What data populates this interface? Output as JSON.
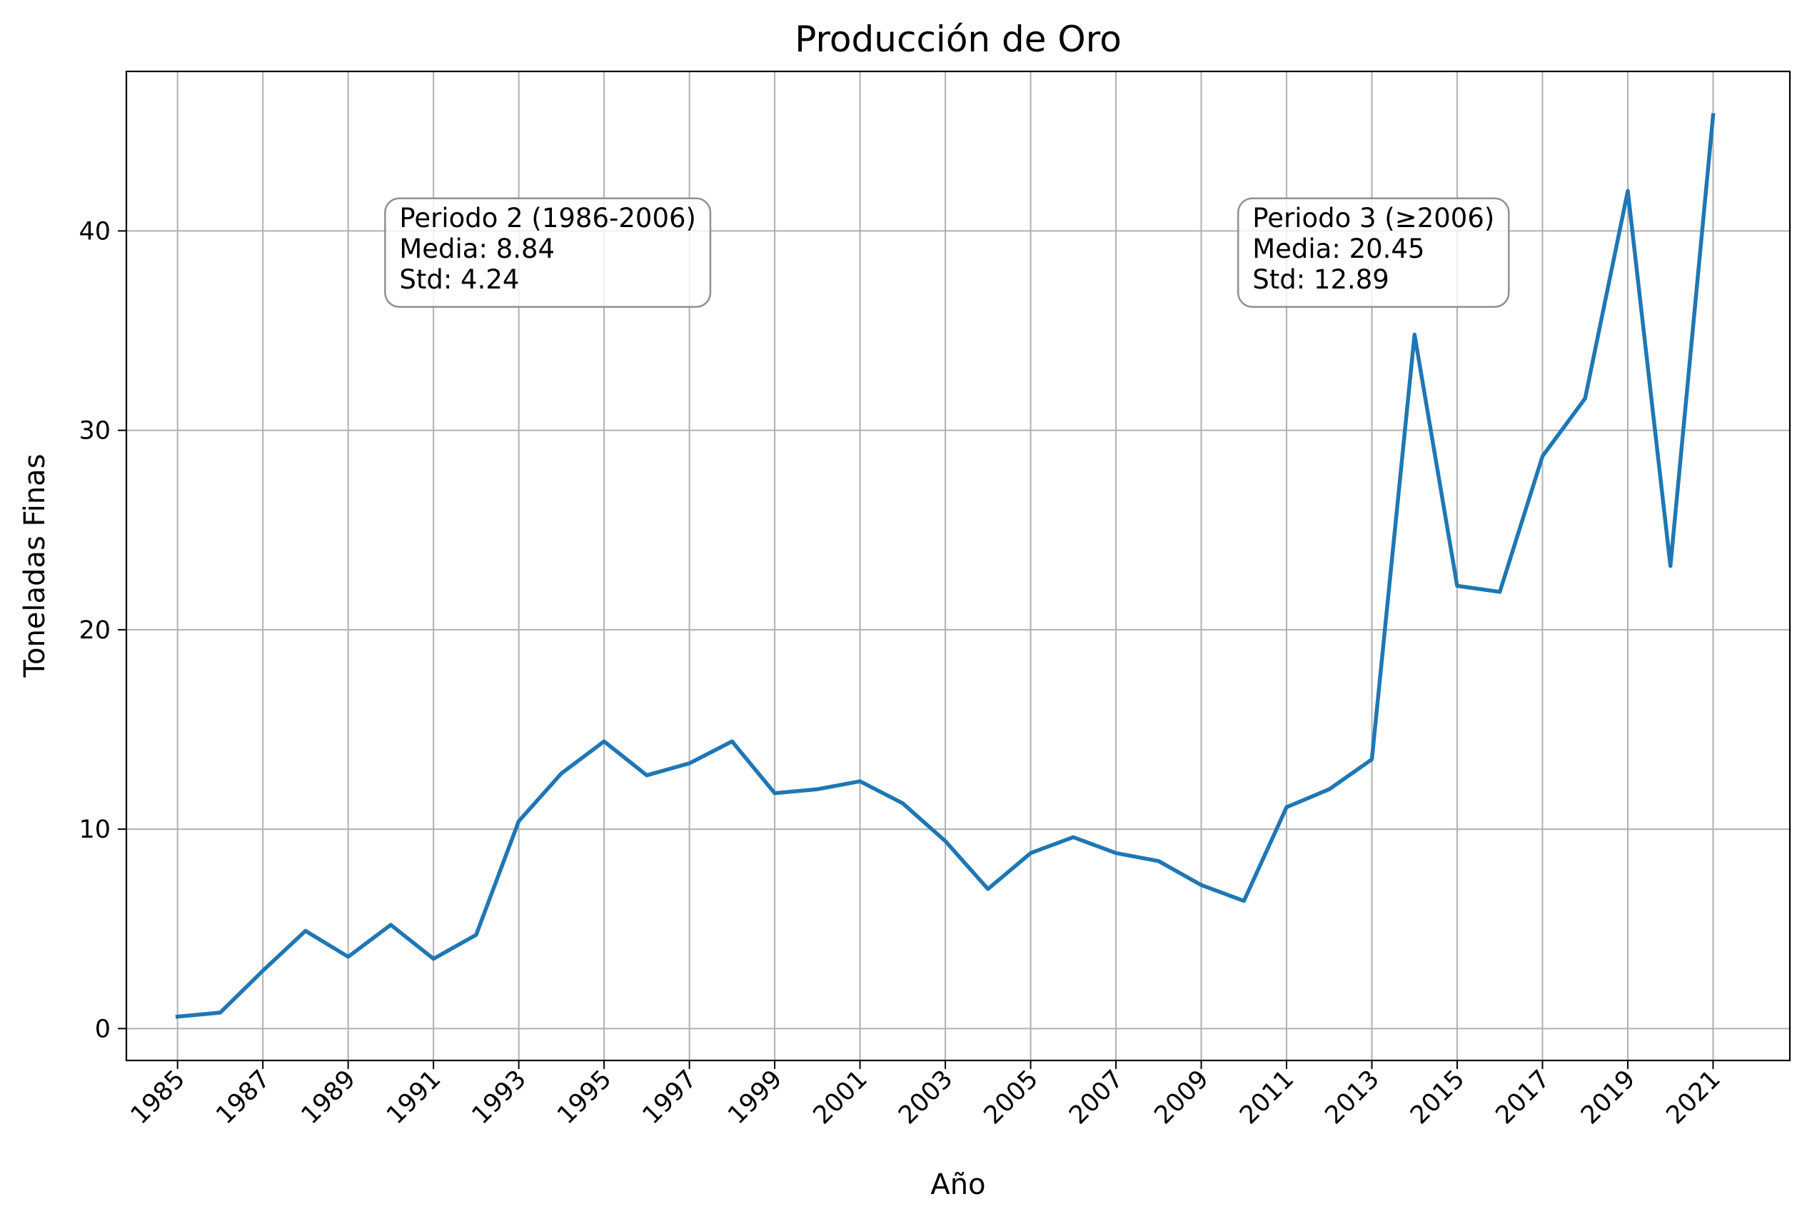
{
  "chart_data": {
    "type": "line",
    "title": "Producción de Oro",
    "xlabel": "Año",
    "ylabel": "Toneladas Finas",
    "xlim": [
      1983.8,
      2022.8
    ],
    "ylim": [
      -1.6,
      48.0
    ],
    "grid": true,
    "x_ticks": [
      1985,
      1987,
      1989,
      1991,
      1993,
      1995,
      1997,
      1999,
      2001,
      2003,
      2005,
      2007,
      2009,
      2011,
      2013,
      2015,
      2017,
      2019,
      2021
    ],
    "y_ticks": [
      0,
      10,
      20,
      30,
      40
    ],
    "series": [
      {
        "color": "#1f77b4",
        "x": [
          1985,
          1986,
          1987,
          1988,
          1989,
          1990,
          1991,
          1992,
          1993,
          1994,
          1995,
          1996,
          1997,
          1998,
          1999,
          2000,
          2001,
          2002,
          2003,
          2004,
          2005,
          2006,
          2007,
          2008,
          2009,
          2010,
          2011,
          2012,
          2013,
          2014,
          2015,
          2016,
          2017,
          2018,
          2019,
          2020,
          2021
        ],
        "y": [
          0.6,
          0.8,
          2.9,
          4.9,
          3.6,
          5.2,
          3.5,
          4.7,
          10.4,
          12.8,
          14.4,
          12.7,
          13.3,
          14.4,
          11.8,
          12.0,
          12.4,
          11.3,
          9.4,
          7.0,
          8.8,
          9.6,
          8.8,
          8.4,
          7.2,
          6.4,
          11.1,
          12.0,
          13.5,
          34.8,
          22.2,
          21.9,
          28.7,
          31.6,
          42.0,
          23.2,
          45.8
        ]
      }
    ],
    "annotations": [
      {
        "name": "periodo-2",
        "x": 1990.2,
        "y": 40.2,
        "lines": [
          "Periodo 2 (1986-2006)",
          "Media: 8.84",
          "Std: 4.24"
        ]
      },
      {
        "name": "periodo-3",
        "x": 2010.2,
        "y": 40.2,
        "lines": [
          "Periodo 3 (≥2006)",
          "Media: 20.45",
          "Std: 12.89"
        ]
      }
    ]
  }
}
